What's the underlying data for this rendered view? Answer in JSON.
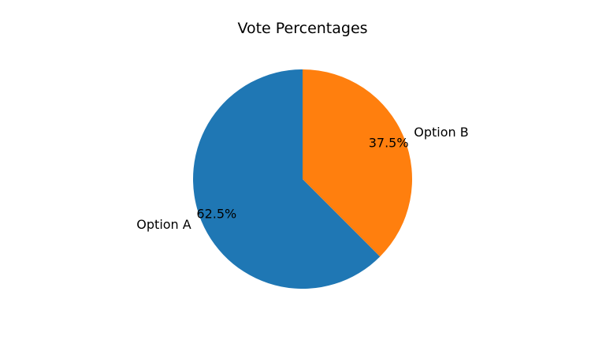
{
  "chart_data": {
    "type": "pie",
    "title": "Vote Percentages",
    "categories": [
      "Option A",
      "Option B"
    ],
    "values": [
      62.5,
      37.5
    ],
    "value_labels": [
      "62.5%",
      "37.5%"
    ],
    "colors": [
      "#1f77b4",
      "#ff7f0e"
    ],
    "start_angle_deg": 90,
    "direction": "counterclockwise"
  }
}
